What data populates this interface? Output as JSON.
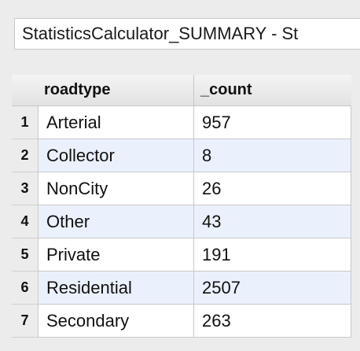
{
  "window": {
    "title": "StatisticsCalculator_SUMMARY - St"
  },
  "table": {
    "columns": [
      "roadtype",
      "_count"
    ],
    "rows": [
      {
        "index": "1",
        "roadtype": "Arterial",
        "count": "957"
      },
      {
        "index": "2",
        "roadtype": "Collector",
        "count": "8"
      },
      {
        "index": "3",
        "roadtype": "NonCity",
        "count": "26"
      },
      {
        "index": "4",
        "roadtype": "Other",
        "count": "43"
      },
      {
        "index": "5",
        "roadtype": "Private",
        "count": "191"
      },
      {
        "index": "6",
        "roadtype": "Residential",
        "count": "2507"
      },
      {
        "index": "7",
        "roadtype": "Secondary",
        "count": "263"
      }
    ]
  },
  "colors": {
    "row_alt": "#ebf1fc",
    "row_base": "#ffffff",
    "background": "#ececec"
  }
}
